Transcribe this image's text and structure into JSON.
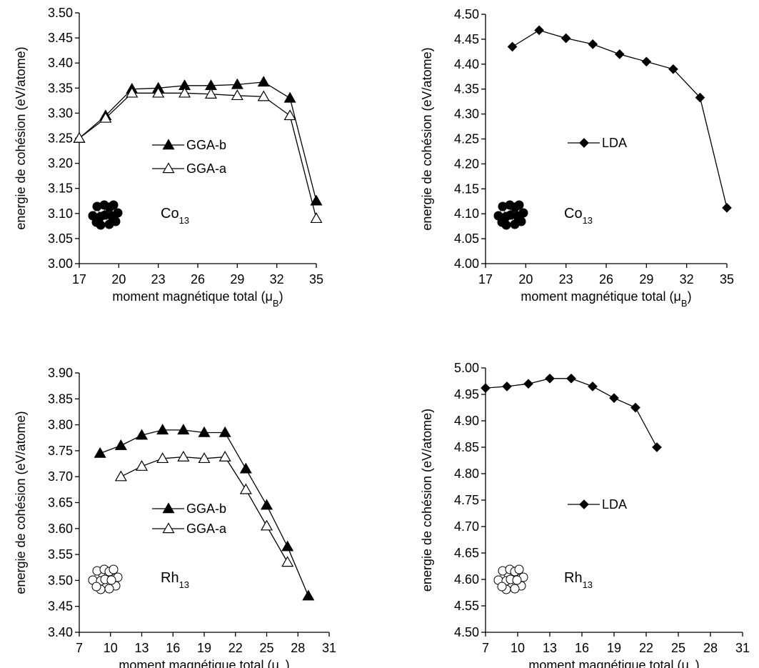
{
  "chart_data": [
    {
      "type": "line",
      "ylabel": "energie de cohésion (eV/atome)",
      "xlabel": {
        "text": "moment magnétique total (μ",
        "sub": "B",
        "end": ")"
      },
      "annotation": {
        "text": "Co",
        "sub": "13"
      },
      "xlim": [
        17,
        35
      ],
      "xticks": [
        17,
        20,
        23,
        26,
        29,
        32,
        35
      ],
      "ylim": [
        3,
        3.5
      ],
      "yticks": [
        {
          "value": 3,
          "label": "3.00"
        },
        3.05,
        {
          "value": 3.1,
          "label": "3.10"
        },
        3.15,
        {
          "value": 3.2,
          "label": "3.20"
        },
        3.25,
        {
          "value": 3.3,
          "label": "3.30"
        },
        3.35,
        {
          "value": 3.4,
          "label": "3.40"
        },
        3.45,
        {
          "value": 3.5,
          "label": "3.50"
        }
      ],
      "series": [
        {
          "name": "GGA-b",
          "color": "#000000",
          "marker": "triangle",
          "marker_fill": "#000000",
          "x": [
            17,
            19,
            21,
            23,
            25,
            27,
            29,
            31,
            33,
            35
          ],
          "values": [
            3.25,
            3.295,
            3.348,
            3.35,
            3.355,
            3.355,
            3.357,
            3.362,
            3.33,
            3.125
          ]
        },
        {
          "name": "GGA-a",
          "color": "#000000",
          "marker": "triangle",
          "marker_fill": "#ffffff",
          "x": [
            17,
            19,
            21,
            23,
            25,
            27,
            29,
            31,
            33,
            35
          ],
          "values": [
            3.25,
            3.29,
            3.34,
            3.34,
            3.34,
            3.338,
            3.335,
            3.333,
            3.295,
            3.09
          ]
        }
      ]
    },
    {
      "type": "line",
      "ylabel": "energie de cohésion (eV/atome)",
      "xlabel": {
        "text": "moment magnétique total (μ",
        "sub": "B",
        "end": ")"
      },
      "annotation": {
        "text": "Co",
        "sub": "13"
      },
      "xlim": [
        17,
        35
      ],
      "xticks": [
        17,
        20,
        23,
        26,
        29,
        32,
        35
      ],
      "ylim": [
        4,
        4.5
      ],
      "yticks": [
        {
          "value": 4,
          "label": "4.00"
        },
        4.05,
        {
          "value": 4.1,
          "label": "4.10"
        },
        4.15,
        {
          "value": 4.2,
          "label": "4.20"
        },
        4.25,
        {
          "value": 4.3,
          "label": "4.30"
        },
        4.35,
        {
          "value": 4.4,
          "label": "4.40"
        },
        4.45,
        {
          "value": 4.5,
          "label": "4.50"
        }
      ],
      "series": [
        {
          "name": "LDA",
          "color": "#000000",
          "marker": "diamond",
          "marker_fill": "#000000",
          "x": [
            19,
            21,
            23,
            25,
            27,
            29,
            31,
            33,
            35
          ],
          "values": [
            4.435,
            4.468,
            4.452,
            4.44,
            4.42,
            4.405,
            4.39,
            4.333,
            4.112
          ]
        }
      ]
    },
    {
      "type": "line",
      "ylabel": "energie de cohésion (eV/atome)",
      "xlabel": {
        "text": "moment magnétique total (μ",
        "sub": "B",
        "end": ")"
      },
      "annotation": {
        "text": "Rh",
        "sub": "13"
      },
      "xlim": [
        7,
        31
      ],
      "xticks": [
        7,
        10,
        13,
        16,
        19,
        22,
        25,
        28,
        31
      ],
      "ylim": [
        3.4,
        3.9
      ],
      "yticks": [
        {
          "value": 3.4,
          "label": "3.40"
        },
        3.45,
        {
          "value": 3.5,
          "label": "3.50"
        },
        3.55,
        {
          "value": 3.6,
          "label": "3.60"
        },
        3.65,
        {
          "value": 3.7,
          "label": "3.70"
        },
        3.75,
        {
          "value": 3.8,
          "label": "3.80"
        },
        3.85,
        {
          "value": 3.9,
          "label": "3.90"
        }
      ],
      "series": [
        {
          "name": "GGA-b",
          "color": "#000000",
          "marker": "triangle",
          "marker_fill": "#000000",
          "x": [
            9,
            11,
            13,
            15,
            17,
            19,
            21,
            23,
            25,
            27,
            29
          ],
          "values": [
            3.745,
            3.76,
            3.78,
            3.79,
            3.79,
            3.785,
            3.785,
            3.715,
            3.645,
            3.565,
            3.47
          ]
        },
        {
          "name": "GGA-a",
          "color": "#000000",
          "marker": "triangle",
          "marker_fill": "#ffffff",
          "x": [
            11,
            13,
            15,
            17,
            19,
            21,
            23,
            25,
            27
          ],
          "values": [
            3.7,
            3.72,
            3.735,
            3.738,
            3.735,
            3.738,
            3.675,
            3.605,
            3.535
          ]
        }
      ]
    },
    {
      "type": "line",
      "ylabel": "energie de cohésion (eV/atome)",
      "xlabel": {
        "text": "moment magnétique total (μ",
        "sub": "B",
        "end": ")"
      },
      "annotation": {
        "text": "Rh",
        "sub": "13"
      },
      "xlim": [
        7,
        31
      ],
      "xticks": [
        7,
        10,
        13,
        16,
        19,
        22,
        25,
        28,
        31
      ],
      "ylim": [
        4.5,
        5
      ],
      "yticks": [
        {
          "value": 4.5,
          "label": "4.50"
        },
        4.55,
        {
          "value": 4.6,
          "label": "4.60"
        },
        4.65,
        {
          "value": 4.7,
          "label": "4.70"
        },
        4.75,
        {
          "value": 4.8,
          "label": "4.80"
        },
        4.85,
        {
          "value": 4.9,
          "label": "4.90"
        },
        4.95,
        {
          "value": 5,
          "label": "5.00"
        }
      ],
      "series": [
        {
          "name": "LDA",
          "color": "#000000",
          "marker": "diamond",
          "marker_fill": "#000000",
          "x": [
            7,
            9,
            11,
            13,
            15,
            17,
            19,
            21,
            23
          ],
          "values": [
            4.962,
            4.965,
            4.97,
            4.98,
            4.98,
            4.965,
            4.943,
            4.925,
            4.85
          ]
        }
      ]
    }
  ]
}
